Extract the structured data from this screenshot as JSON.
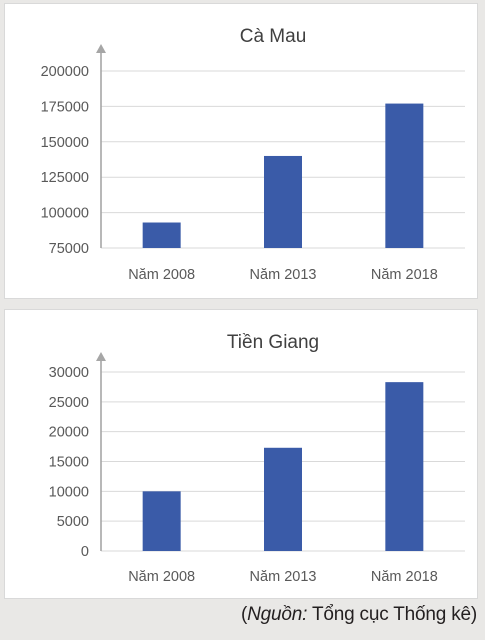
{
  "chart_data": [
    {
      "type": "bar",
      "title": "Cà Mau",
      "categories": [
        "Năm 2008",
        "Năm 2013",
        "Năm 2018"
      ],
      "values": [
        93000,
        140000,
        177000
      ],
      "ylim": [
        75000,
        200000
      ],
      "yticks": [
        "200000",
        "175000",
        "150000",
        "125000",
        "100000",
        "75000"
      ],
      "xlabel": "",
      "ylabel": "",
      "grid": true,
      "bar_color": "#3a5ba8"
    },
    {
      "type": "bar",
      "title": "Tiền Giang",
      "categories": [
        "Năm 2008",
        "Năm 2013",
        "Năm 2018"
      ],
      "values": [
        10000,
        17300,
        28300
      ],
      "ylim": [
        0,
        30000
      ],
      "yticks": [
        "30000",
        "25000",
        "20000",
        "15000",
        "10000",
        "5000",
        "0"
      ],
      "xlabel": "",
      "ylabel": "",
      "grid": true,
      "bar_color": "#3a5ba8"
    }
  ],
  "source": {
    "prefix": "(",
    "italic": "Nguồn:",
    "text": " Tổng cục Thống kê)"
  }
}
